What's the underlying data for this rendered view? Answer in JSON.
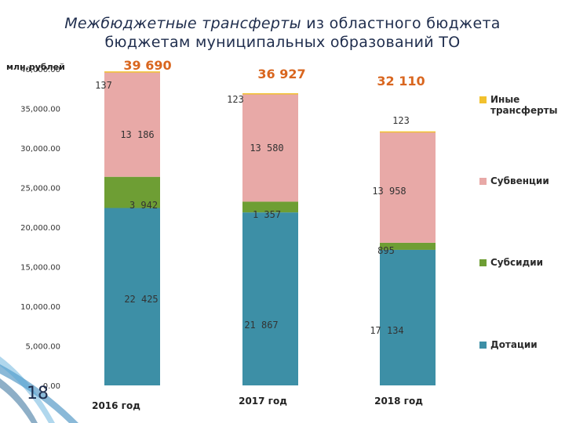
{
  "slide_number": "18",
  "title": {
    "line1_part1": "Межбюджетные трансферты",
    "line1_part2": " из областного бюджета",
    "line2": "бюджетам муниципальных образований ТО"
  },
  "chart_data": {
    "type": "bar",
    "stacked": true,
    "unit_label": "млн.рублей",
    "categories": [
      "2016 год",
      "2017 год",
      "2018 год"
    ],
    "ylim": [
      0,
      40000
    ],
    "ticks": [
      "0.00",
      "5,000.00",
      "10,000.00",
      "15,000.00",
      "20,000.00",
      "25,000.00",
      "30,000.00",
      "35,000.00",
      "40,000.00"
    ],
    "tick_values": [
      0,
      5000,
      10000,
      15000,
      20000,
      25000,
      30000,
      35000,
      40000
    ],
    "series": [
      {
        "name": "Дотации",
        "values": [
          22425,
          21867,
          17134
        ],
        "labels": [
          "22 425",
          "21 867",
          "17 134"
        ],
        "color": "#3d8fa6"
      },
      {
        "name": "Субсидии",
        "values": [
          3942,
          1357,
          895
        ],
        "labels": [
          "3 942",
          "1 357",
          "895"
        ],
        "color": "#6e9e34"
      },
      {
        "name": "Субвенции",
        "values": [
          13186,
          13580,
          13958
        ],
        "labels": [
          "13 186",
          "13 580",
          "13 958"
        ],
        "color": "#e8a9a7"
      },
      {
        "name": "Иные трансферты",
        "values": [
          137,
          123,
          123
        ],
        "labels": [
          "137",
          "123",
          "123"
        ],
        "color": "#f2c12e"
      }
    ],
    "totals": [
      "39 690",
      "36 927",
      "32 110"
    ],
    "total_color": "#d9661f",
    "legend_position": "right",
    "grid": false
  }
}
